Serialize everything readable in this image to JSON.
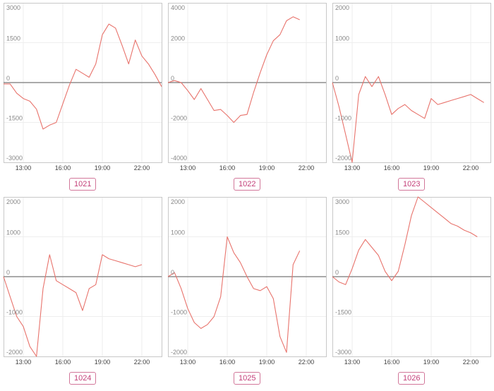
{
  "chart_data": [
    {
      "type": "line",
      "title": "1021",
      "x_ticks": [
        "13:00",
        "16:00",
        "19:00",
        "22:00"
      ],
      "y_ticks": [
        3000,
        1500,
        0,
        -1500,
        -3000
      ],
      "ylim": [
        -3000,
        3000
      ],
      "xlim": [
        "11:30",
        "23:30"
      ],
      "grid": true,
      "x": [
        "11:30",
        "12:00",
        "12:30",
        "13:00",
        "13:30",
        "14:00",
        "14:30",
        "15:00",
        "15:30",
        "16:00",
        "16:30",
        "17:00",
        "17:30",
        "18:00",
        "18:30",
        "19:00",
        "19:30",
        "20:00",
        "20:30",
        "21:00",
        "21:30",
        "22:00",
        "22:30",
        "23:00",
        "23:30"
      ],
      "values": [
        -50,
        -50,
        -400,
        -600,
        -700,
        -1000,
        -1750,
        -1600,
        -1500,
        -800,
        -100,
        500,
        350,
        200,
        700,
        1800,
        2200,
        2050,
        1400,
        700,
        1600,
        1000,
        700,
        300,
        -150
      ],
      "line_color": "#e8736c"
    },
    {
      "type": "line",
      "title": "1022",
      "x_ticks": [
        "13:00",
        "16:00",
        "19:00",
        "22:00"
      ],
      "y_ticks": [
        4000,
        2000,
        0,
        -2000,
        -4000
      ],
      "ylim": [
        -4000,
        4000
      ],
      "xlim": [
        "11:30",
        "23:30"
      ],
      "grid": true,
      "x": [
        "11:30",
        "12:00",
        "12:30",
        "13:00",
        "13:30",
        "14:00",
        "14:30",
        "15:00",
        "15:30",
        "16:00",
        "16:30",
        "17:00",
        "17:30",
        "18:00",
        "18:30",
        "19:00",
        "19:30",
        "20:00",
        "20:30",
        "21:00",
        "21:30"
      ],
      "values": [
        0,
        100,
        0,
        -400,
        -850,
        -300,
        -850,
        -1400,
        -1350,
        -1650,
        -2000,
        -1650,
        -1600,
        -500,
        500,
        1400,
        2100,
        2400,
        3100,
        3300,
        3150
      ],
      "line_color": "#e8736c"
    },
    {
      "type": "line",
      "title": "1023",
      "x_ticks": [
        "13:00",
        "16:00",
        "19:00",
        "22:00"
      ],
      "y_ticks": [
        2000,
        1000,
        0,
        -1000,
        -2000
      ],
      "ylim": [
        -2000,
        2000
      ],
      "xlim": [
        "11:30",
        "23:30"
      ],
      "grid": true,
      "x": [
        "11:30",
        "12:00",
        "12:30",
        "13:00",
        "13:30",
        "14:00",
        "14:30",
        "15:00",
        "15:30",
        "16:00",
        "16:30",
        "17:00",
        "17:30",
        "18:00",
        "18:30",
        "19:00",
        "19:30",
        "20:00",
        "20:30",
        "21:00",
        "21:30",
        "22:00",
        "22:30",
        "23:00"
      ],
      "values": [
        0,
        -600,
        -1300,
        -2000,
        -300,
        150,
        -100,
        150,
        -300,
        -800,
        -650,
        -550,
        -700,
        -800,
        -900,
        -400,
        -550,
        -500,
        -450,
        -400,
        -350,
        -300,
        -400,
        -500
      ],
      "line_color": "#e8736c"
    },
    {
      "type": "line",
      "title": "1024",
      "x_ticks": [
        "13:00",
        "16:00",
        "19:00",
        "22:00"
      ],
      "y_ticks": [
        2000,
        1000,
        0,
        -1000,
        -2000
      ],
      "ylim": [
        -2000,
        2000
      ],
      "xlim": [
        "11:30",
        "23:30"
      ],
      "grid": true,
      "x": [
        "11:30",
        "12:00",
        "12:30",
        "13:00",
        "13:30",
        "14:00",
        "14:30",
        "15:00",
        "15:30",
        "16:00",
        "16:30",
        "17:00",
        "17:30",
        "18:00",
        "18:30",
        "19:00",
        "19:30",
        "20:00",
        "20:30",
        "21:00",
        "21:30",
        "22:00"
      ],
      "values": [
        0,
        -500,
        -1000,
        -1250,
        -1750,
        -2000,
        -300,
        550,
        -100,
        -200,
        -300,
        -400,
        -850,
        -300,
        -200,
        550,
        450,
        400,
        350,
        300,
        250,
        300
      ],
      "line_color": "#e8736c"
    },
    {
      "type": "line",
      "title": "1025",
      "x_ticks": [
        "13:00",
        "16:00",
        "19:00",
        "22:00"
      ],
      "y_ticks": [
        2000,
        1000,
        0,
        -1000,
        -2000
      ],
      "ylim": [
        -2000,
        2000
      ],
      "xlim": [
        "11:30",
        "23:30"
      ],
      "grid": true,
      "x": [
        "11:30",
        "12:00",
        "12:30",
        "13:00",
        "13:30",
        "14:00",
        "14:30",
        "15:00",
        "15:30",
        "16:00",
        "16:30",
        "17:00",
        "17:30",
        "18:00",
        "18:30",
        "19:00",
        "19:30",
        "20:00",
        "20:30",
        "21:00",
        "21:30"
      ],
      "values": [
        0,
        100,
        -300,
        -800,
        -1150,
        -1300,
        -1200,
        -1000,
        -500,
        1000,
        600,
        350,
        0,
        -300,
        -350,
        -250,
        -550,
        -1500,
        -1900,
        300,
        650
      ],
      "line_color": "#e8736c"
    },
    {
      "type": "line",
      "title": "1026",
      "x_ticks": [
        "13:00",
        "16:00",
        "19:00",
        "22:00"
      ],
      "y_ticks": [
        3000,
        1500,
        0,
        -1500,
        -3000
      ],
      "ylim": [
        -3000,
        3000
      ],
      "xlim": [
        "11:30",
        "23:30"
      ],
      "grid": true,
      "x": [
        "11:30",
        "12:00",
        "12:30",
        "13:00",
        "13:30",
        "14:00",
        "14:30",
        "15:00",
        "15:30",
        "16:00",
        "16:30",
        "17:00",
        "17:30",
        "18:00",
        "18:30",
        "19:00",
        "19:30",
        "20:00",
        "20:30",
        "21:00",
        "21:30",
        "22:00",
        "22:30"
      ],
      "values": [
        0,
        -200,
        -300,
        300,
        1000,
        1400,
        1100,
        800,
        200,
        -150,
        200,
        1200,
        2300,
        3000,
        2800,
        2600,
        2400,
        2200,
        2000,
        1900,
        1750,
        1650,
        1500
      ],
      "line_color": "#e8736c"
    }
  ]
}
